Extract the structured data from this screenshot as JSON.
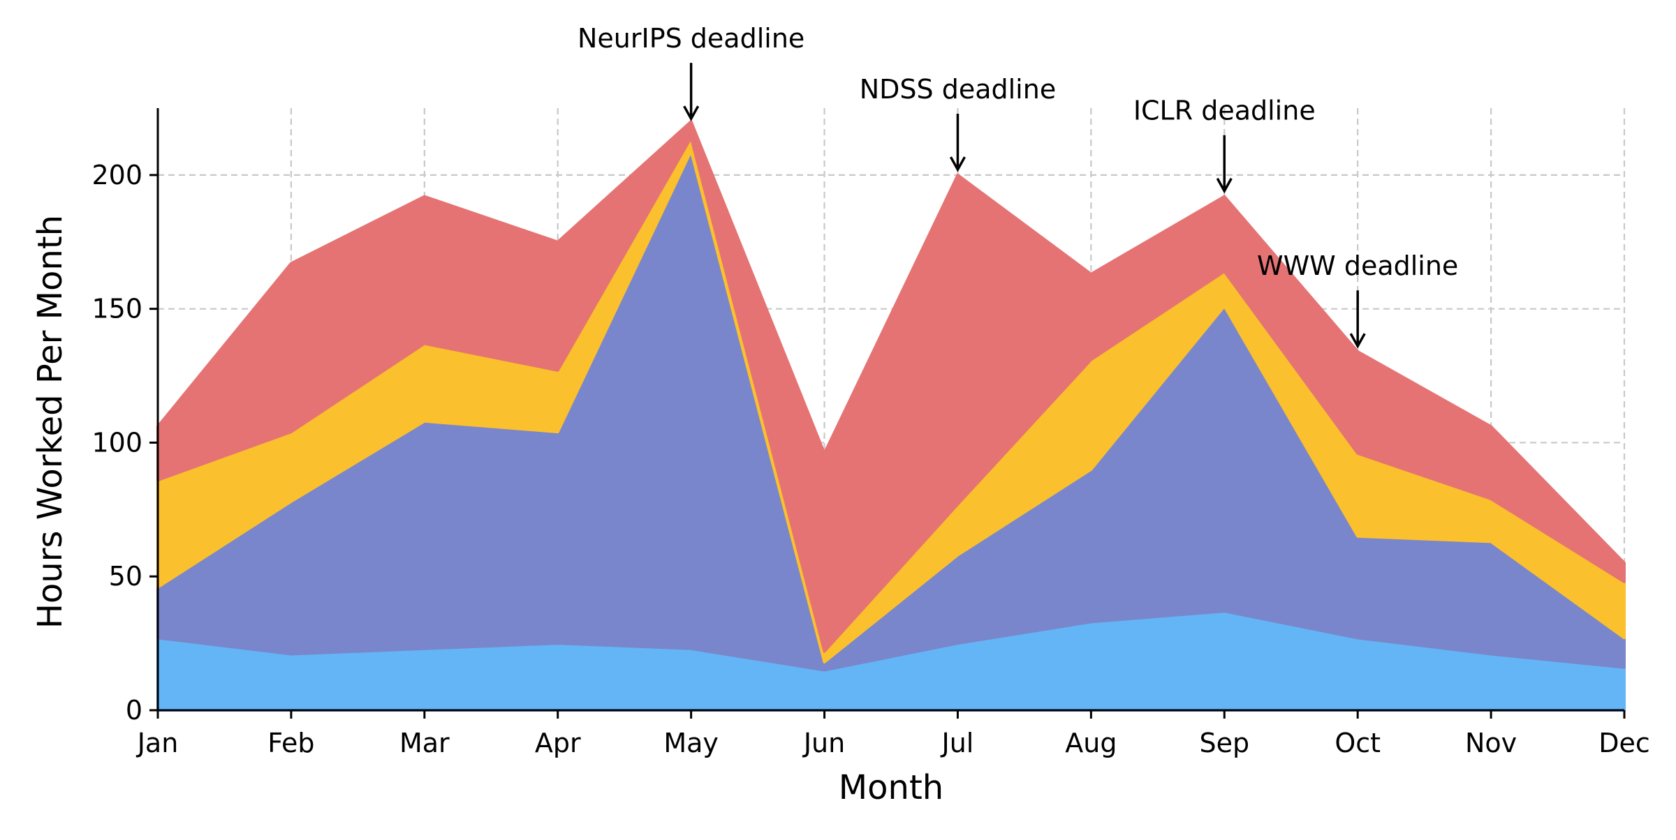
{
  "chart_data": {
    "type": "area",
    "stacked": true,
    "categories": [
      "Jan",
      "Feb",
      "Mar",
      "Apr",
      "May",
      "Jun",
      "Jul",
      "Aug",
      "Sep",
      "Oct",
      "Nov",
      "Dec"
    ],
    "series": [
      {
        "color": "#64b5f6",
        "values": [
          27,
          21,
          23,
          25,
          23,
          15,
          25,
          33,
          37,
          27,
          21,
          16
        ]
      },
      {
        "color": "#7986cb",
        "values": [
          19,
          57,
          85,
          79,
          186,
          3,
          33,
          57,
          114,
          38,
          42,
          11
        ]
      },
      {
        "color": "#fbc02d",
        "values": [
          40,
          26,
          29,
          23,
          5,
          4,
          19,
          41,
          13,
          31,
          16,
          21
        ]
      },
      {
        "color": "#e57373",
        "values": [
          20,
          63,
          55,
          48,
          6,
          74,
          123,
          32,
          28,
          38,
          27,
          7
        ]
      }
    ],
    "xlabel": "Month",
    "ylabel": "Hours Worked Per Month",
    "ylim": [
      0,
      225
    ],
    "yticks": [
      0,
      50,
      100,
      150,
      200
    ],
    "grid": true,
    "annotations": [
      {
        "text": "NeurIPS deadline",
        "x": "May",
        "y": 220
      },
      {
        "text": "NDSS deadline",
        "x": "Jul",
        "y": 201
      },
      {
        "text": "ICLR deadline",
        "x": "Sep",
        "y": 193
      },
      {
        "text": "WWW deadline",
        "x": "Oct",
        "y": 135
      }
    ]
  }
}
